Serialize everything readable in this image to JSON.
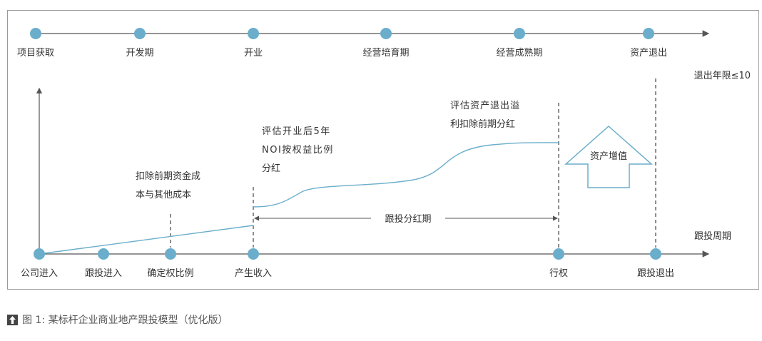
{
  "top_timeline": {
    "stages": [
      "项目获取",
      "开发期",
      "开业",
      "经营培育期",
      "经营成熟期",
      "资产退出"
    ]
  },
  "bottom_timeline": {
    "points": [
      "公司进入",
      "跟投进入",
      "确定权比例",
      "产生收入",
      "行权",
      "跟投退出"
    ],
    "axis_label": "跟投周期"
  },
  "exit_limit": "退出年限≤10",
  "notes": {
    "deduct_costs": [
      "扣除前期资金成",
      "本与其他成本"
    ],
    "assess_noi": [
      "评估开业后5年",
      "NOI按权益比例",
      "分红"
    ],
    "assess_exit": [
      "评估资产退出溢",
      "利扣除前期分红"
    ]
  },
  "dividend_period": "跟投分红期",
  "appreciation": "资产增值",
  "caption": "图 1:  某标杆企业商业地产跟投模型（优化版）",
  "colors": {
    "dot": "#6aaecb",
    "curve": "#6aaecb",
    "axis": "#555555"
  }
}
